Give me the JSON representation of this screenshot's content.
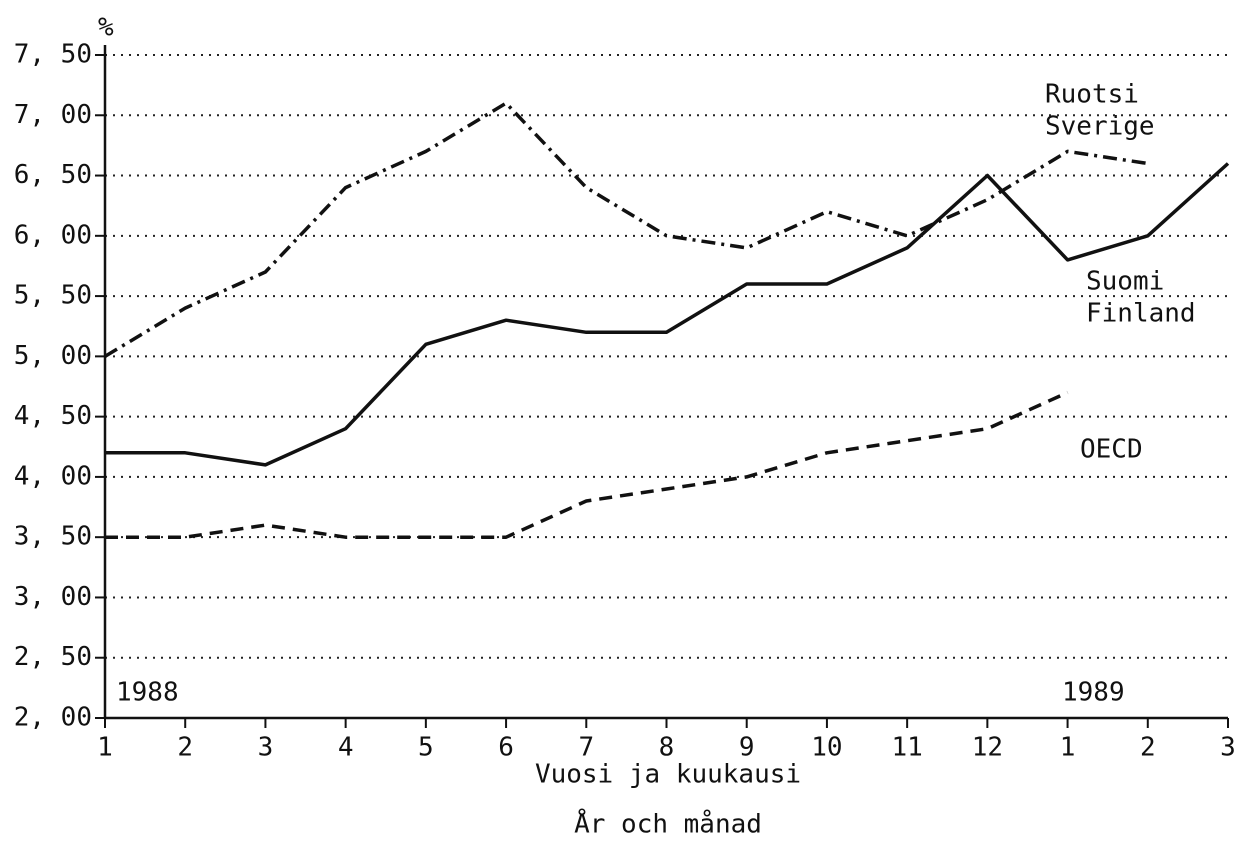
{
  "chart_data": {
    "type": "line",
    "y_unit": "%",
    "x_label": [
      "Vuosi ja kuukausi",
      "År och månad"
    ],
    "year_labels": [
      "1988",
      "1989"
    ],
    "categories": [
      "1",
      "2",
      "3",
      "4",
      "5",
      "6",
      "7",
      "8",
      "9",
      "10",
      "11",
      "12",
      "1",
      "2",
      "3"
    ],
    "series": [
      {
        "name": [
          "Ruotsi",
          "Sverige"
        ],
        "color": "#111111",
        "style": "dashdot",
        "values": [
          5.0,
          5.4,
          5.7,
          6.4,
          6.7,
          7.1,
          6.4,
          6.0,
          5.9,
          6.2,
          6.0,
          6.3,
          6.7,
          6.6,
          null
        ]
      },
      {
        "name": [
          "Suomi",
          "Finland"
        ],
        "color": "#111111",
        "style": "solid",
        "values": [
          4.2,
          4.2,
          4.1,
          4.4,
          5.1,
          5.3,
          5.2,
          5.2,
          5.6,
          5.6,
          5.9,
          6.5,
          5.8,
          6.0,
          6.6
        ]
      },
      {
        "name": [
          "OECD"
        ],
        "color": "#111111",
        "style": "dashed",
        "values": [
          3.5,
          3.5,
          3.6,
          3.5,
          3.5,
          3.5,
          3.8,
          3.9,
          4.0,
          4.2,
          4.3,
          4.4,
          4.7,
          null,
          null
        ]
      }
    ],
    "ylim": [
      2.0,
      7.5
    ],
    "yticks": [
      {
        "value": 2.0,
        "label": "2, 00"
      },
      {
        "value": 2.5,
        "label": "2, 50"
      },
      {
        "value": 3.0,
        "label": "3, 00"
      },
      {
        "value": 3.5,
        "label": "3, 50"
      },
      {
        "value": 4.0,
        "label": "4, 00"
      },
      {
        "value": 4.5,
        "label": "4, 50"
      },
      {
        "value": 5.0,
        "label": "5, 00"
      },
      {
        "value": 5.5,
        "label": "5, 50"
      },
      {
        "value": 6.0,
        "label": "6, 00"
      },
      {
        "value": 6.5,
        "label": "6, 50"
      },
      {
        "value": 7.0,
        "label": "7, 00"
      },
      {
        "value": 7.5,
        "label": "7, 50"
      }
    ],
    "grid": true
  }
}
